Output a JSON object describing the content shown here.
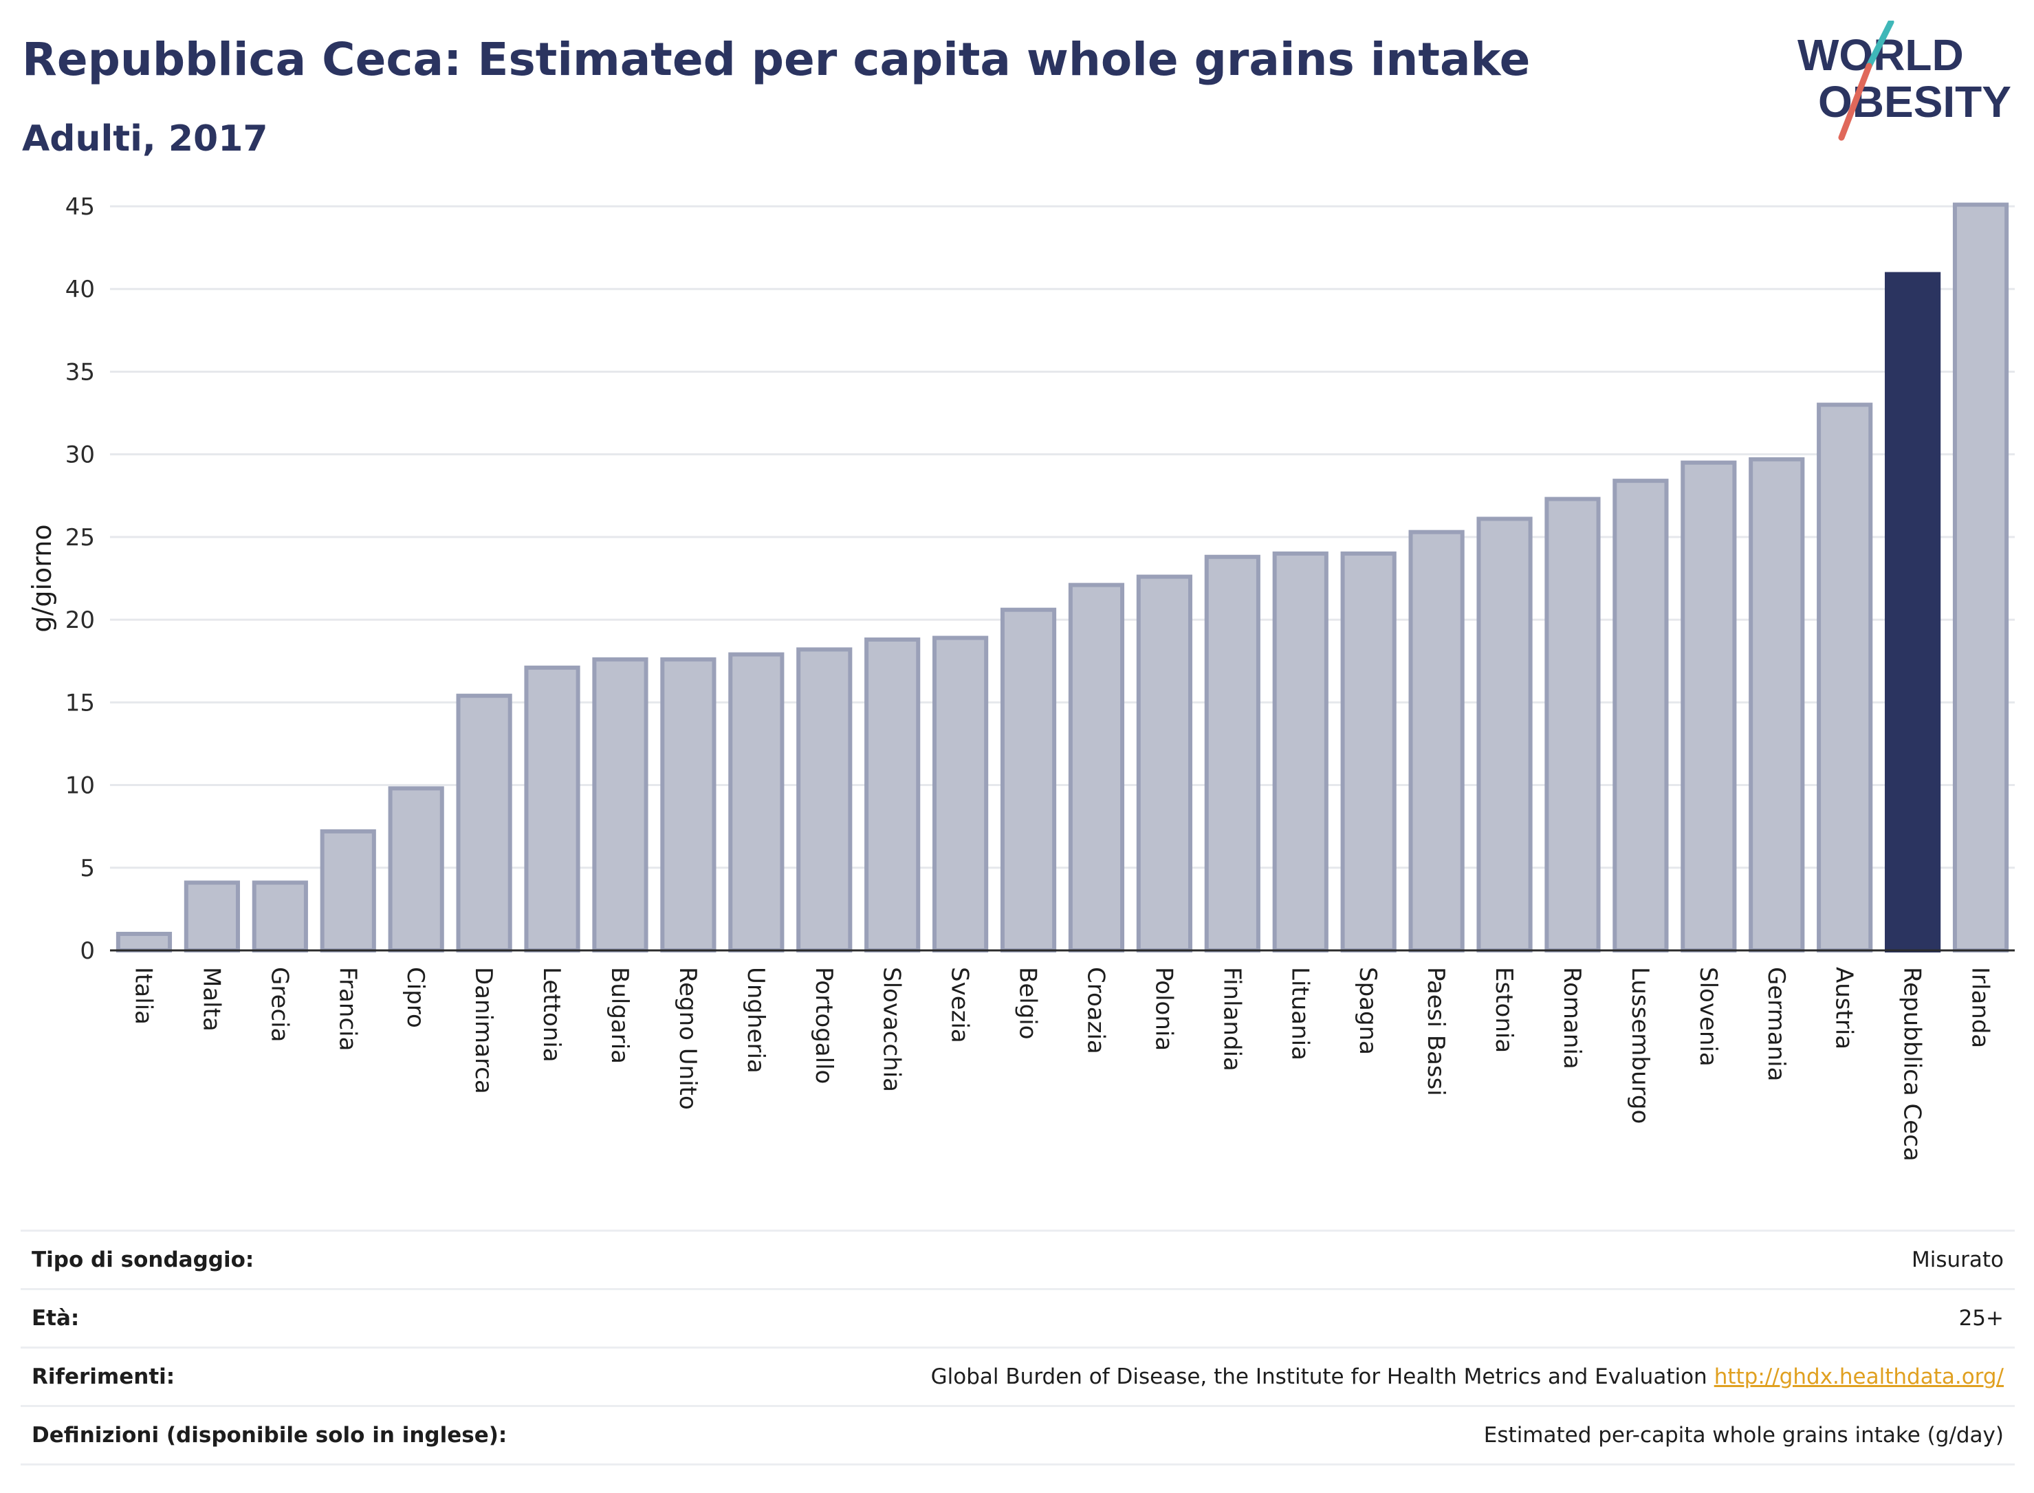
{
  "header": {
    "title": "Repubblica Ceca: Estimated per capita whole grains intake",
    "subtitle": "Adulti, 2017"
  },
  "logo": {
    "line1": "WORLD",
    "line2": "OBESITY",
    "icon": "world-obesity-logo"
  },
  "colors": {
    "bar": "#bcc0ce",
    "bar_border": "#9aa0b8",
    "highlight": "#2b3460",
    "grid": "#e6e8ec",
    "axis": "#2b2b2b",
    "text": "#2b3460"
  },
  "chart_data": {
    "type": "bar",
    "title": "Repubblica Ceca: Estimated per capita whole grains intake",
    "subtitle": "Adulti, 2017",
    "xlabel": "",
    "ylabel": "g/giorno",
    "ylim": [
      0,
      45
    ],
    "yticks": [
      0,
      5,
      10,
      15,
      20,
      25,
      30,
      35,
      40,
      45
    ],
    "grid": true,
    "highlight": "Repubblica Ceca",
    "categories": [
      "Italia",
      "Malta",
      "Grecia",
      "Francia",
      "Cipro",
      "Danimarca",
      "Lettonia",
      "Bulgaria",
      "Regno Unito",
      "Ungheria",
      "Portogallo",
      "Slovacchia",
      "Svezia",
      "Belgio",
      "Croazia",
      "Polonia",
      "Finlandia",
      "Lituania",
      "Spagna",
      "Paesi Bassi",
      "Estonia",
      "Romania",
      "Lussemburgo",
      "Slovenia",
      "Germania",
      "Austria",
      "Repubblica Ceca",
      "Irlanda"
    ],
    "values": [
      1.0,
      4.1,
      4.1,
      7.2,
      9.8,
      15.4,
      17.1,
      17.6,
      17.6,
      17.9,
      18.2,
      18.8,
      18.9,
      20.6,
      22.1,
      22.6,
      23.8,
      24.0,
      24.0,
      25.3,
      26.1,
      27.3,
      28.4,
      29.5,
      29.7,
      33.0,
      40.9,
      45.1
    ]
  },
  "info": [
    {
      "label": "Tipo di sondaggio:",
      "value": "Misurato",
      "link": ""
    },
    {
      "label": "Età:",
      "value": "25+",
      "link": ""
    },
    {
      "label": "Riferimenti:",
      "value": "Global Burden of Disease, the Institute for Health Metrics and Evaluation",
      "link": "http://ghdx.healthdata.org/"
    },
    {
      "label": "Definizioni (disponibile solo in inglese):",
      "value": "Estimated per-capita whole grains intake (g/day)",
      "link": ""
    }
  ]
}
